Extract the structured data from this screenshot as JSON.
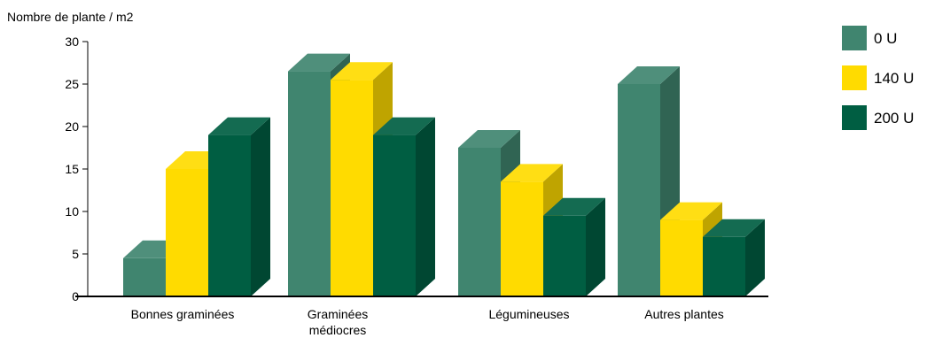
{
  "chart_data": {
    "type": "bar",
    "style": "3d-clustered-column",
    "ylabel": "Nombre de plante / m2",
    "ylim": [
      0,
      30
    ],
    "yticks": [
      0,
      5,
      10,
      15,
      20,
      25,
      30
    ],
    "categories": [
      "Bonnes graminées",
      "Graminées médiocres",
      "Légumineuses",
      "Autres plantes"
    ],
    "series": [
      {
        "name": "0 U",
        "color": "#40856F",
        "values": [
          4.5,
          26.5,
          17.5,
          25
        ]
      },
      {
        "name": "140 U",
        "color": "#FFDB00",
        "values": [
          15,
          25.5,
          13.5,
          9
        ]
      },
      {
        "name": "200 U",
        "color": "#005E42",
        "values": [
          19,
          19,
          9.5,
          7
        ]
      }
    ],
    "legend_position": "right",
    "grid": false
  }
}
